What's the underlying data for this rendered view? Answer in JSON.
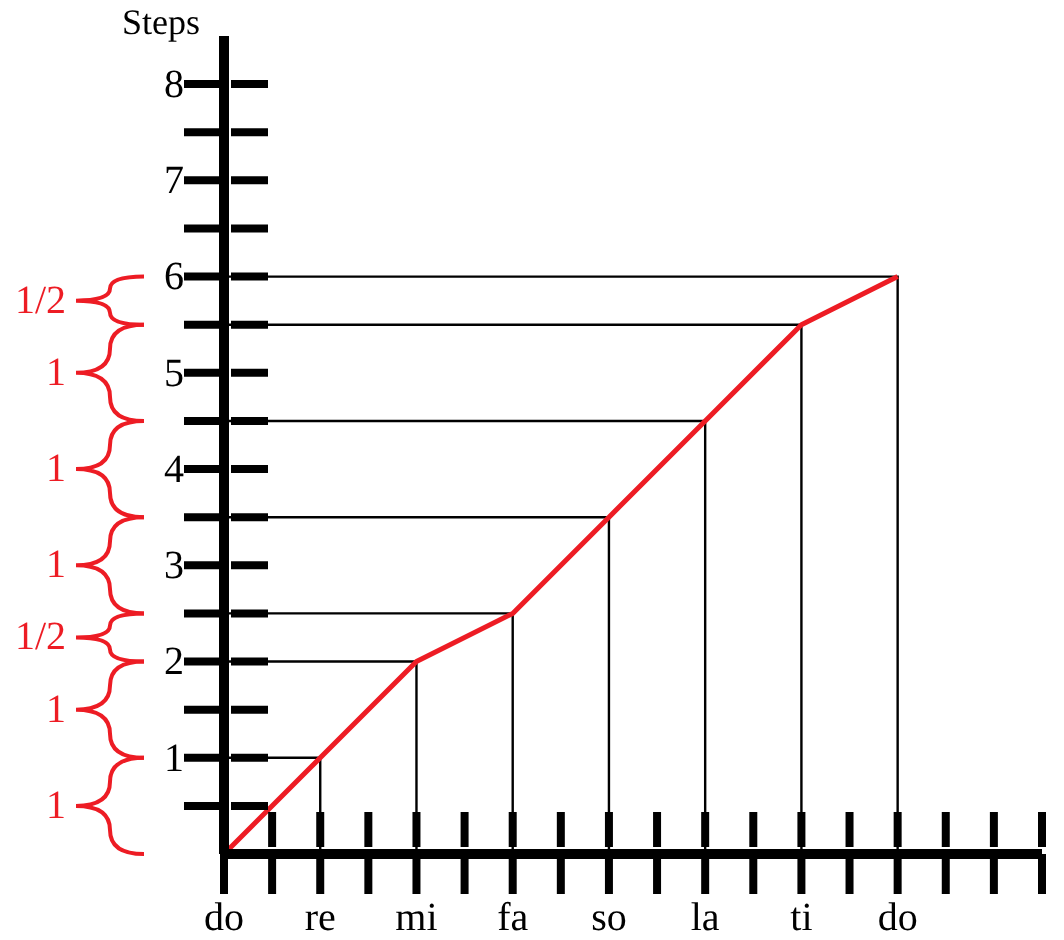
{
  "chart_data": {
    "type": "line",
    "ylabel": "Steps",
    "categories": [
      "do",
      "re",
      "mi",
      "fa",
      "so",
      "la",
      "ti",
      "do"
    ],
    "series": [
      {
        "color": "#ed1c24",
        "values": [
          0,
          1,
          2,
          2.5,
          3.5,
          4.5,
          5.5,
          6
        ]
      }
    ],
    "ylim": [
      0,
      8.5
    ],
    "yticks": [
      1,
      2,
      3,
      4,
      5,
      6,
      7,
      8
    ],
    "ref_lines": [
      {
        "axis": "y",
        "value": 1
      },
      {
        "axis": "y",
        "value": 2
      },
      {
        "axis": "y",
        "value": 2.5
      },
      {
        "axis": "y",
        "value": 3.5
      },
      {
        "axis": "y",
        "value": 4.5
      },
      {
        "axis": "y",
        "value": 5.5
      },
      {
        "axis": "y",
        "value": 6
      }
    ],
    "annotations": [
      "1/2",
      "1",
      "1",
      "1",
      "1/2",
      "1",
      "1"
    ]
  }
}
